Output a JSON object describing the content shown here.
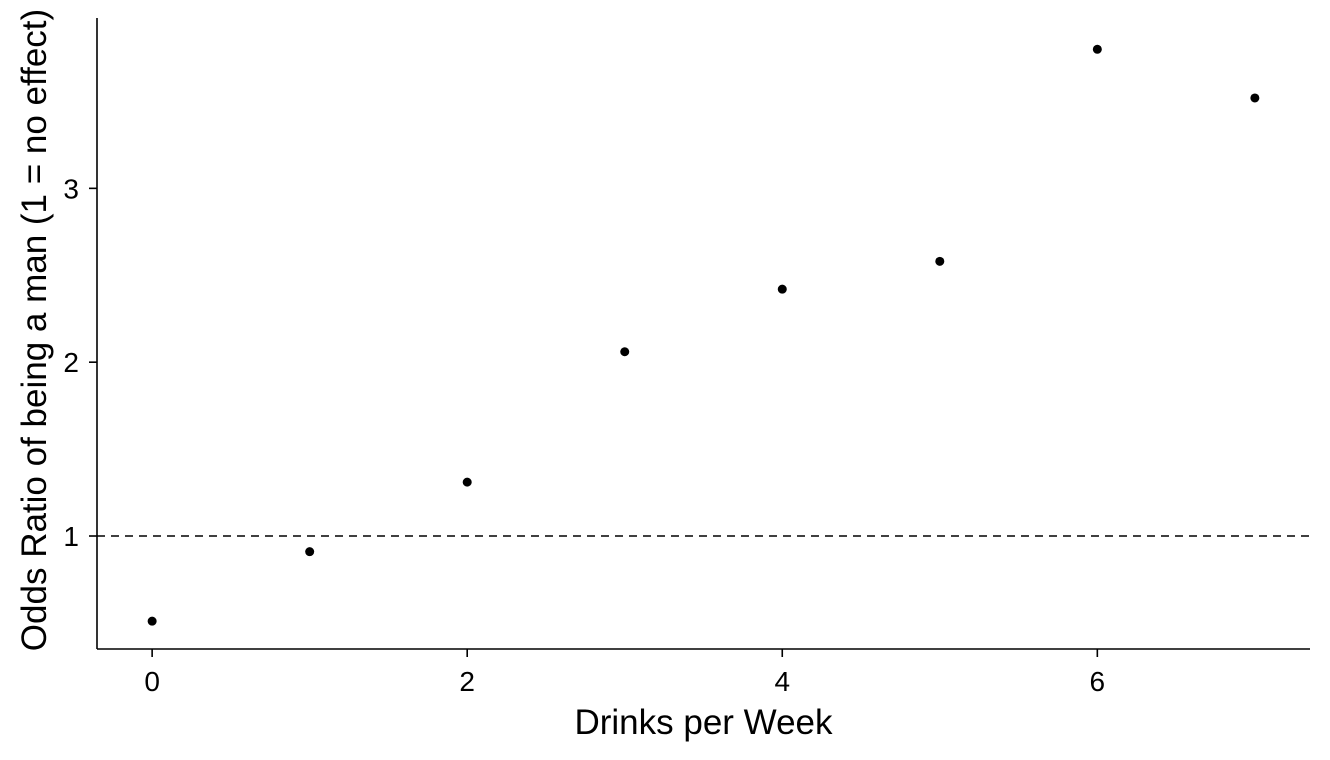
{
  "chart_data": {
    "type": "scatter",
    "title": "",
    "xlabel": "Drinks per Week",
    "ylabel": "Odds Ratio of being a man (1 = no effect)",
    "x": [
      0,
      1,
      2,
      3,
      4,
      5,
      6,
      7
    ],
    "y": [
      0.51,
      0.91,
      1.31,
      2.06,
      2.42,
      2.58,
      3.8,
      3.52
    ],
    "xlim": [
      -0.35,
      7.35
    ],
    "ylim": [
      0.35,
      3.98
    ],
    "x_ticks": [
      0,
      2,
      4,
      6
    ],
    "y_ticks": [
      1,
      2,
      3
    ],
    "x_tick_labels": [
      "0",
      "2",
      "4",
      "6"
    ],
    "y_tick_labels": [
      "1",
      "2",
      "3"
    ],
    "reference_line": {
      "y": 1,
      "style": "dashed"
    },
    "grid": false,
    "legend": "none",
    "point_color": "#000000"
  }
}
